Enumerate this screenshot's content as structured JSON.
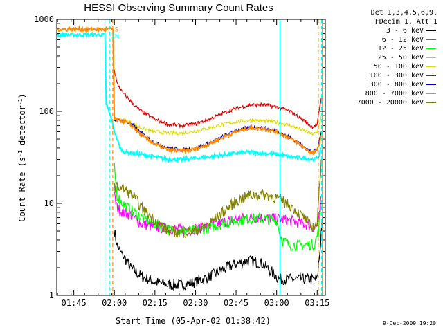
{
  "chart_data": {
    "type": "line",
    "title": "HESSI Observing Summary Count Rates",
    "xlabel": "Start Time (05-Apr-02 01:38:42)",
    "ylabel": "Count Rate (s",
    "ylabel_sup1": "-1",
    "ylabel_mid": " detector",
    "ylabel_sup2": "-1",
    "ylabel_end": ")",
    "y_scale": "log",
    "ylim": [
      1,
      1000
    ],
    "xlim_minutes": [
      98.7,
      198
    ],
    "x_ticks": [
      {
        "t": 105,
        "label": "01:45"
      },
      {
        "t": 120,
        "label": "02:00"
      },
      {
        "t": 135,
        "label": "02:15"
      },
      {
        "t": 150,
        "label": "02:30"
      },
      {
        "t": 165,
        "label": "02:45"
      },
      {
        "t": 180,
        "label": "03:00"
      },
      {
        "t": 195,
        "label": "03:15"
      }
    ],
    "y_ticks": [
      {
        "v": 1,
        "label": "1"
      },
      {
        "v": 10,
        "label": "10"
      },
      {
        "v": 100,
        "label": "100"
      },
      {
        "v": 1000,
        "label": "1000"
      }
    ],
    "legend_header": [
      "Det 1,3,4,5,6,9,",
      "FDecim 1, Att 1"
    ],
    "series": [
      {
        "name": "3 - 6 keV",
        "color": "#000000",
        "points": [
          [
            120,
            5
          ],
          [
            121,
            3.5
          ],
          [
            122,
            3
          ],
          [
            124,
            2.5
          ],
          [
            126,
            2
          ],
          [
            130,
            1.6
          ],
          [
            135,
            1.4
          ],
          [
            140,
            1.3
          ],
          [
            145,
            1.3
          ],
          [
            150,
            1.4
          ],
          [
            155,
            1.6
          ],
          [
            160,
            1.9
          ],
          [
            165,
            2.2
          ],
          [
            170,
            2.4
          ],
          [
            175,
            2.2
          ],
          [
            178,
            1.8
          ],
          [
            180,
            1.6
          ],
          [
            181,
            1.5
          ],
          [
            195,
            1.5
          ],
          [
            196,
            3
          ],
          [
            197,
            8
          ]
        ]
      },
      {
        "name": "6 - 12 keV",
        "color": "#ff00ff",
        "points": [
          [
            120,
            12
          ],
          [
            121,
            9
          ],
          [
            123,
            8
          ],
          [
            126,
            7.5
          ],
          [
            130,
            6
          ],
          [
            135,
            5.5
          ],
          [
            140,
            5.3
          ],
          [
            145,
            5.2
          ],
          [
            150,
            5.3
          ],
          [
            155,
            5.6
          ],
          [
            160,
            6.2
          ],
          [
            165,
            6.8
          ],
          [
            170,
            7
          ],
          [
            175,
            7
          ],
          [
            180,
            6.8
          ],
          [
            185,
            6.5
          ],
          [
            190,
            6
          ],
          [
            194,
            5.5
          ],
          [
            195.5,
            6
          ],
          [
            196.5,
            12
          ]
        ]
      },
      {
        "name": "12 - 25 keV",
        "color": "#00ff00",
        "points": [
          [
            120,
            24
          ],
          [
            121,
            12
          ],
          [
            123,
            10
          ],
          [
            126,
            8.5
          ],
          [
            130,
            7
          ],
          [
            135,
            6
          ],
          [
            140,
            5.2
          ],
          [
            145,
            5
          ],
          [
            150,
            5.1
          ],
          [
            155,
            5.4
          ],
          [
            160,
            6
          ],
          [
            165,
            6.5
          ],
          [
            170,
            6.8
          ],
          [
            175,
            6.8
          ],
          [
            180,
            6.5
          ],
          [
            182,
            4
          ],
          [
            185,
            3.5
          ],
          [
            190,
            3.5
          ],
          [
            194,
            3.6
          ],
          [
            195.5,
            5
          ],
          [
            196.5,
            10
          ]
        ]
      },
      {
        "name": "25 - 50 keV",
        "color": "#00ffff",
        "points": [
          [
            98.7,
            680
          ],
          [
            116.5,
            680
          ],
          [
            117,
            120
          ],
          [
            118.5,
            90
          ],
          [
            119.5,
            70
          ],
          [
            120.5,
            55
          ],
          [
            121.5,
            45
          ],
          [
            122.5,
            38
          ],
          [
            124,
            36
          ],
          [
            130,
            34
          ],
          [
            135,
            32
          ],
          [
            140,
            30
          ],
          [
            145,
            30
          ],
          [
            150,
            31
          ],
          [
            155,
            32
          ],
          [
            160,
            33.5
          ],
          [
            165,
            35
          ],
          [
            170,
            36
          ],
          [
            175,
            35
          ],
          [
            180,
            34
          ],
          [
            185,
            32
          ],
          [
            190,
            31
          ],
          [
            194,
            30
          ],
          [
            195.5,
            32
          ],
          [
            196.5,
            40
          ]
        ]
      },
      {
        "name": "50 - 100 keV",
        "color": "#dddd00",
        "points": [
          [
            120,
            85
          ],
          [
            122,
            82
          ],
          [
            125,
            78
          ],
          [
            130,
            66
          ],
          [
            135,
            60
          ],
          [
            140,
            58
          ],
          [
            145,
            58
          ],
          [
            150,
            61
          ],
          [
            155,
            66
          ],
          [
            160,
            72
          ],
          [
            165,
            77
          ],
          [
            170,
            80
          ],
          [
            175,
            79
          ],
          [
            180,
            76
          ],
          [
            185,
            70
          ],
          [
            190,
            62
          ],
          [
            193,
            57
          ],
          [
            195,
            58
          ],
          [
            196.5,
            90
          ]
        ]
      },
      {
        "name": "100 - 300 keV",
        "color": "#dd0000",
        "points": [
          [
            120,
            280
          ],
          [
            121,
            200
          ],
          [
            122,
            180
          ],
          [
            123,
            160
          ],
          [
            125,
            140
          ],
          [
            127,
            120
          ],
          [
            130,
            100
          ],
          [
            135,
            82
          ],
          [
            140,
            72
          ],
          [
            145,
            70
          ],
          [
            150,
            73
          ],
          [
            155,
            82
          ],
          [
            160,
            95
          ],
          [
            165,
            108
          ],
          [
            170,
            117
          ],
          [
            175,
            118
          ],
          [
            180,
            112
          ],
          [
            185,
            100
          ],
          [
            190,
            80
          ],
          [
            193,
            68
          ],
          [
            195,
            72
          ],
          [
            196.5,
            140
          ]
        ]
      },
      {
        "name": "300 - 800 keV",
        "color": "#0000cc",
        "points": [
          [
            120,
            80
          ],
          [
            122,
            80
          ],
          [
            124,
            78
          ],
          [
            127,
            70
          ],
          [
            130,
            58
          ],
          [
            135,
            45
          ],
          [
            140,
            40
          ],
          [
            145,
            38
          ],
          [
            150,
            40
          ],
          [
            155,
            45
          ],
          [
            160,
            53
          ],
          [
            165,
            62
          ],
          [
            170,
            67
          ],
          [
            175,
            66
          ],
          [
            180,
            61
          ],
          [
            185,
            52
          ],
          [
            190,
            42
          ],
          [
            193,
            36
          ],
          [
            195,
            38
          ],
          [
            196.5,
            60
          ]
        ]
      },
      {
        "name": "800 - 7000 keV",
        "color": "#ff8800",
        "points": [
          [
            98.7,
            780
          ],
          [
            119.5,
            780
          ],
          [
            120,
            82
          ],
          [
            122,
            80
          ],
          [
            124,
            77
          ],
          [
            127,
            68
          ],
          [
            130,
            55
          ],
          [
            135,
            44
          ],
          [
            140,
            38
          ],
          [
            145,
            37
          ],
          [
            150,
            39
          ],
          [
            155,
            44
          ],
          [
            160,
            52
          ],
          [
            165,
            60
          ],
          [
            170,
            66
          ],
          [
            175,
            65
          ],
          [
            180,
            60
          ],
          [
            185,
            51
          ],
          [
            190,
            41
          ],
          [
            193,
            35
          ],
          [
            195,
            37
          ],
          [
            196.5,
            55
          ]
        ]
      },
      {
        "name": "7000 - 20000 keV",
        "color": "#808000",
        "points": [
          [
            120,
            15
          ],
          [
            122,
            15
          ],
          [
            124,
            14
          ],
          [
            127,
            12
          ],
          [
            130,
            9
          ],
          [
            135,
            6.5
          ],
          [
            140,
            5
          ],
          [
            145,
            4.8
          ],
          [
            150,
            5
          ],
          [
            155,
            6
          ],
          [
            160,
            8
          ],
          [
            165,
            10.5
          ],
          [
            170,
            12.3
          ],
          [
            175,
            12.5
          ],
          [
            180,
            11.5
          ],
          [
            185,
            9.5
          ],
          [
            190,
            7
          ],
          [
            193,
            5.5
          ],
          [
            195,
            6
          ],
          [
            196.5,
            30
          ]
        ]
      }
    ],
    "vertical_lines": [
      {
        "t": 116.5,
        "color": "#00ffff",
        "style": "solid"
      },
      {
        "t": 118.2,
        "color": "#00ffff",
        "style": "dashed"
      },
      {
        "t": 119.4,
        "color": "#ff8800",
        "style": "dashed"
      },
      {
        "t": 181.2,
        "color": "#00ffff",
        "style": "solid"
      },
      {
        "t": 195.4,
        "color": "#ff8800",
        "style": "dashed"
      },
      {
        "t": 196.6,
        "color": "#00ffff",
        "style": "dashed"
      },
      {
        "t": 196.9,
        "color": "#ff8800",
        "style": "solid"
      }
    ],
    "annotations": [
      {
        "text": "S",
        "t": 120.1,
        "v": 780,
        "color": "#ff8800"
      },
      {
        "text": "IN",
        "t": 118.8,
        "v": 660,
        "color": "#00ffff"
      }
    ]
  },
  "footer": {
    "timestamp": "9-Dec-2009 19:20"
  }
}
